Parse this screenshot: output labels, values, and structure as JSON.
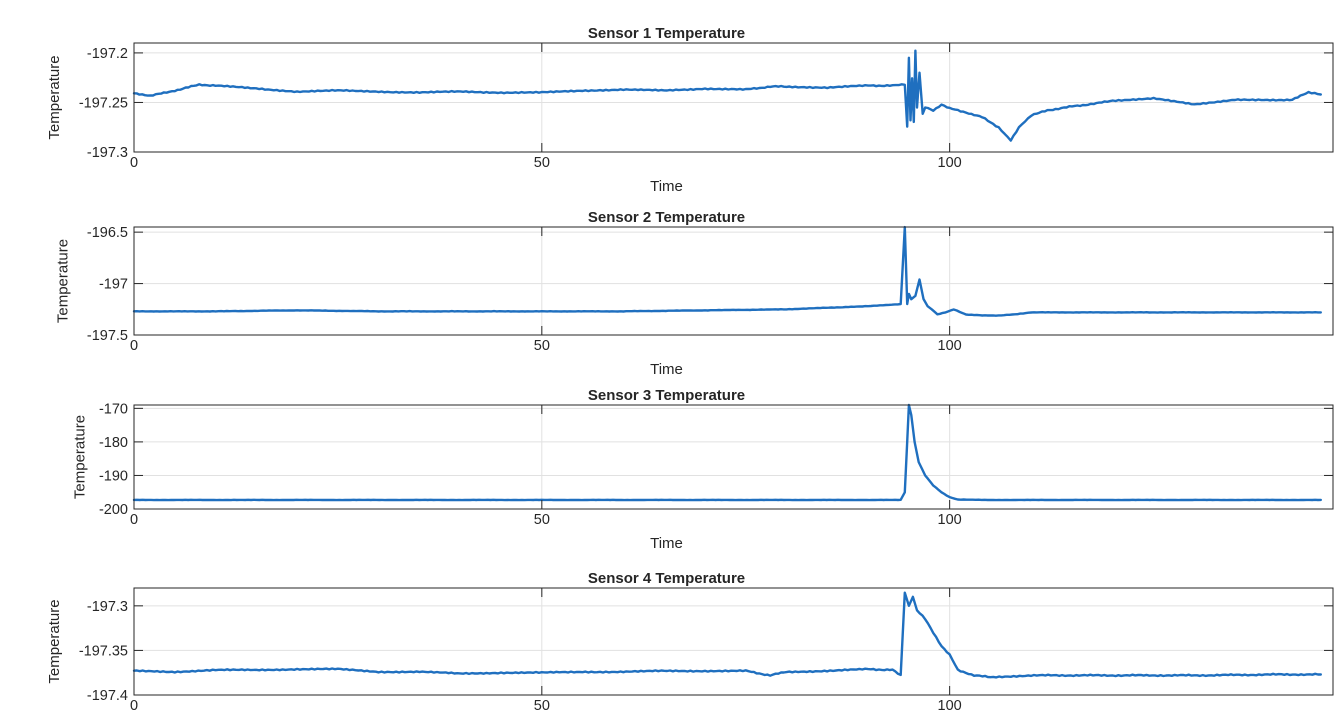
{
  "chart_data": [
    {
      "type": "line",
      "title": "Sensor 1 Temperature",
      "xlabel": "Time",
      "ylabel": "Temperature",
      "xlim": [
        0,
        147
      ],
      "ylim": [
        -197.3,
        -197.19
      ],
      "xticks": [
        0,
        50,
        100
      ],
      "xtick_labels": [
        "0",
        "50",
        "100"
      ],
      "yticks": [
        -197.3,
        -197.25,
        -197.2
      ],
      "ytick_labels": [
        "-197.3",
        "-197.25",
        "-197.2"
      ],
      "grid": true,
      "series": [
        {
          "color": "#1f6fbf",
          "x": [
            0,
            2,
            4,
            6,
            8,
            10,
            15,
            20,
            25,
            30,
            35,
            40,
            45,
            50,
            55,
            60,
            65,
            70,
            75,
            78,
            80,
            85,
            90,
            93,
            94.5,
            94.8,
            95,
            95.2,
            95.4,
            95.6,
            95.8,
            96,
            96.3,
            96.7,
            97,
            98,
            99,
            100,
            102,
            104,
            106,
            107.5,
            108.5,
            110,
            112,
            115,
            118,
            120,
            125,
            130,
            135,
            140,
            142,
            144,
            145.5
          ],
          "y": [
            -197.241,
            -197.243,
            -197.24,
            -197.236,
            -197.232,
            -197.233,
            -197.236,
            -197.239,
            -197.238,
            -197.239,
            -197.24,
            -197.239,
            -197.24,
            -197.24,
            -197.238,
            -197.237,
            -197.238,
            -197.236,
            -197.237,
            -197.234,
            -197.234,
            -197.235,
            -197.233,
            -197.233,
            -197.232,
            -197.275,
            -197.205,
            -197.268,
            -197.225,
            -197.27,
            -197.198,
            -197.255,
            -197.22,
            -197.262,
            -197.255,
            -197.258,
            -197.252,
            -197.256,
            -197.26,
            -197.265,
            -197.275,
            -197.288,
            -197.275,
            -197.263,
            -197.258,
            -197.254,
            -197.251,
            -197.248,
            -197.246,
            -197.252,
            -197.247,
            -197.248,
            -197.247,
            -197.24,
            -197.242
          ]
        }
      ]
    },
    {
      "type": "line",
      "title": "Sensor 2 Temperature",
      "xlabel": "Time",
      "ylabel": "Temperature",
      "xlim": [
        0,
        147
      ],
      "ylim": [
        -197.5,
        -196.45
      ],
      "xticks": [
        0,
        50,
        100
      ],
      "xtick_labels": [
        "0",
        "50",
        "100"
      ],
      "yticks": [
        -197.5,
        -197,
        -196.5
      ],
      "ytick_labels": [
        "-197.5",
        "-197",
        "-196.5"
      ],
      "grid": true,
      "series": [
        {
          "color": "#1f6fbf",
          "x": [
            0,
            10,
            20,
            30,
            40,
            50,
            60,
            70,
            80,
            90,
            94,
            94.5,
            94.8,
            95,
            95.3,
            95.8,
            96.3,
            96.8,
            97.3,
            97.8,
            98.5,
            99.5,
            100.5,
            102,
            104,
            106,
            108,
            110,
            120,
            130,
            140,
            145.5
          ],
          "y": [
            -197.27,
            -197.27,
            -197.26,
            -197.27,
            -197.27,
            -197.27,
            -197.27,
            -197.26,
            -197.25,
            -197.22,
            -197.2,
            -196.45,
            -197.2,
            -197.1,
            -197.15,
            -197.12,
            -196.96,
            -197.15,
            -197.22,
            -197.25,
            -197.3,
            -197.28,
            -197.25,
            -197.3,
            -197.31,
            -197.31,
            -197.3,
            -197.28,
            -197.28,
            -197.28,
            -197.28,
            -197.28
          ]
        }
      ]
    },
    {
      "type": "line",
      "title": "Sensor 3 Temperature",
      "xlabel": "Time",
      "ylabel": "Temperature",
      "xlim": [
        0,
        147
      ],
      "ylim": [
        -200,
        -169
      ],
      "xticks": [
        0,
        50,
        100
      ],
      "xtick_labels": [
        "0",
        "50",
        "100"
      ],
      "yticks": [
        -200,
        -190,
        -180,
        -170
      ],
      "ytick_labels": [
        "-200",
        "-190",
        "-180",
        "-170"
      ],
      "grid": true,
      "series": [
        {
          "color": "#1f6fbf",
          "x": [
            0,
            50,
            94,
            94.5,
            94.8,
            95,
            95.3,
            95.7,
            96.2,
            97,
            98,
            99,
            100,
            101,
            105,
            120,
            145.5
          ],
          "y": [
            -197.3,
            -197.3,
            -197.3,
            -195,
            -180,
            -169,
            -172,
            -180,
            -186,
            -190,
            -193,
            -195,
            -196.5,
            -197.2,
            -197.3,
            -197.3,
            -197.3
          ]
        }
      ]
    },
    {
      "type": "line",
      "title": "Sensor 4 Temperature",
      "xlabel": "",
      "ylabel": "Temperature",
      "xlim": [
        0,
        147
      ],
      "ylim": [
        -197.4,
        -197.28
      ],
      "xticks": [
        0,
        50,
        100
      ],
      "xtick_labels": [
        "0",
        "50",
        "100"
      ],
      "yticks": [
        -197.4,
        -197.35,
        -197.3
      ],
      "ytick_labels": [
        "-197.4",
        "-197.35",
        "-197.3"
      ],
      "grid": true,
      "series": [
        {
          "color": "#1f6fbf",
          "x": [
            0,
            5,
            10,
            15,
            20,
            25,
            30,
            35,
            40,
            45,
            50,
            55,
            60,
            65,
            70,
            75,
            78,
            80,
            85,
            90,
            93,
            94,
            94.5,
            95,
            95.5,
            96,
            97,
            98,
            99,
            100,
            101,
            103,
            105,
            110,
            120,
            130,
            140,
            145.5
          ],
          "y": [
            -197.373,
            -197.374,
            -197.372,
            -197.372,
            -197.371,
            -197.371,
            -197.374,
            -197.374,
            -197.376,
            -197.375,
            -197.375,
            -197.374,
            -197.374,
            -197.373,
            -197.373,
            -197.373,
            -197.378,
            -197.374,
            -197.373,
            -197.371,
            -197.372,
            -197.378,
            -197.285,
            -197.3,
            -197.29,
            -197.305,
            -197.315,
            -197.33,
            -197.345,
            -197.355,
            -197.372,
            -197.378,
            -197.38,
            -197.378,
            -197.378,
            -197.378,
            -197.377,
            -197.377
          ]
        }
      ]
    }
  ]
}
